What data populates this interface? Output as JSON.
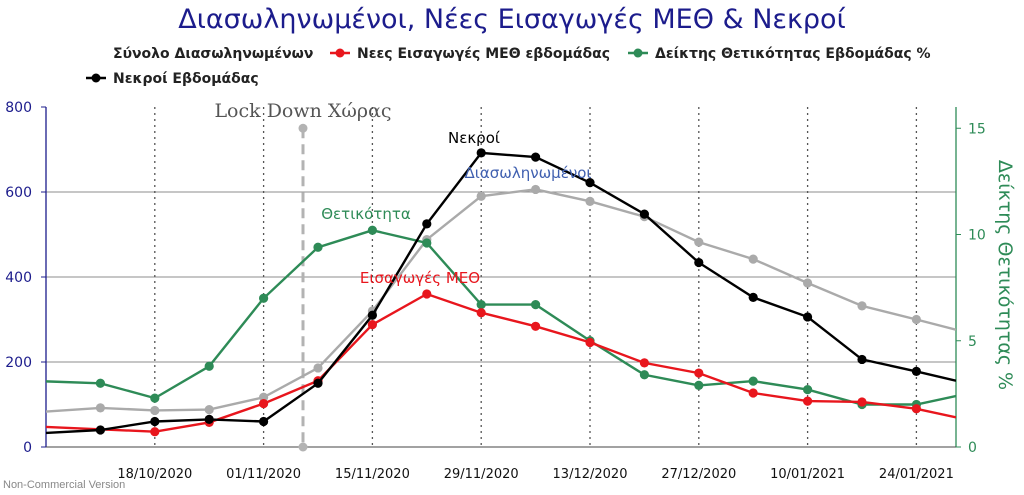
{
  "chart_data": {
    "type": "line",
    "title": "Διασωληνωμένοι, Νέες Εισαγωγές ΜΕΘ & Νεκροί",
    "watermark": "Non-Commercial Version",
    "y_left": {
      "range": [
        0,
        800
      ],
      "ticks": [
        "0",
        "200",
        "400",
        "600",
        "800"
      ],
      "color": "#1c1c8c"
    },
    "y_right": {
      "label": "Δείκτης Θετικότητας %",
      "range": [
        0,
        16
      ],
      "ticks": [
        "0",
        "5",
        "10",
        "15"
      ],
      "color": "#2e8b57"
    },
    "x_ticks": [
      "18/10/2020",
      "01/11/2020",
      "15/11/2020",
      "29/11/2020",
      "13/12/2020",
      "27/12/2020",
      "10/01/2021",
      "24/01/2021"
    ],
    "legend": [
      {
        "label": "Σύνολο Διασωληνωμένων",
        "color": "#aaaaaa"
      },
      {
        "label": "Νεες Εισαγωγές ΜΕΘ εβδομάδας",
        "color": "#e8161d"
      },
      {
        "label": "Δείκτης Θετικότητας Εβδομάδας %",
        "color": "#2e8b57"
      },
      {
        "label": "Νεκροί Εβδομάδας",
        "color": "#000000"
      }
    ],
    "lockdown_label": "Lock Down Χώρας",
    "series": [
      {
        "name": "Σύνολο Διασωληνωμένων",
        "axis": "left",
        "color": "#aaaaaa",
        "label": "Διασωληνωμένοι",
        "label_color": "#4060b0",
        "values": [
          92,
          86,
          88,
          117,
          186,
          320,
          488,
          590,
          606,
          578,
          542,
          482,
          442,
          386,
          332,
          300
        ]
      },
      {
        "name": "Νεες Εισαγωγές ΜΕΘ εβδομάδας",
        "axis": "left",
        "color": "#e8161d",
        "label": "Εισαγωγές ΜΕΘ",
        "label_color": "#e8161d",
        "values": [
          null,
          36,
          58,
          102,
          156,
          288,
          360,
          316,
          284,
          246,
          198,
          174,
          127,
          108,
          106,
          90
        ]
      },
      {
        "name": "Δείκτης Θετικότητας Εβδομάδας %",
        "axis": "right",
        "color": "#2e8b57",
        "label": "Θετικότητα",
        "label_color": "#2e8b57",
        "values": [
          3.0,
          2.3,
          3.8,
          7.0,
          9.4,
          10.2,
          9.6,
          6.7,
          6.7,
          5.0,
          3.4,
          2.9,
          3.1,
          2.7,
          2.0,
          2.0
        ]
      },
      {
        "name": "Νεκροί Εβδομάδας",
        "axis": "left",
        "color": "#000000",
        "label": "Νεκροί",
        "label_color": "#000000",
        "values": [
          40,
          60,
          65,
          60,
          150,
          310,
          525,
          692,
          682,
          622,
          548,
          434,
          352,
          306,
          206,
          178
        ]
      }
    ]
  }
}
